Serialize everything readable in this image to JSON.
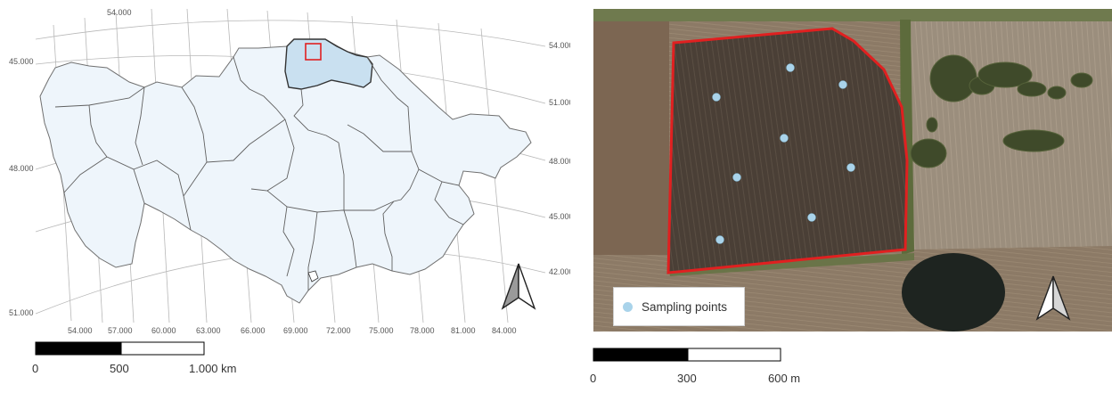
{
  "left_map": {
    "graticule_top_labels": [
      "54.000"
    ],
    "graticule_left_labels": [
      "45.000",
      "48.000",
      "51.000"
    ],
    "graticule_right_labels": [
      "54.000",
      "51.000",
      "48.000",
      "45.000",
      "42.000"
    ],
    "graticule_bottom_labels": [
      "54.000",
      "57.000",
      "60.000",
      "63.000",
      "66.000",
      "69.000",
      "72.000",
      "75.000",
      "78.000",
      "81.000",
      "84.000"
    ],
    "region_fill": "#eef5fb",
    "highlight_fill": "#c9e0f0",
    "study_area_box_color": "#e02020",
    "north_arrow": "north-arrow",
    "scalebar": {
      "labels": [
        "0",
        "500",
        "1.000 km"
      ]
    }
  },
  "right_map": {
    "field_boundary_color": "#e02020",
    "sampling_point_color": "#a9d3ea",
    "sampling_points_count": 8,
    "legend": {
      "label": "Sampling points"
    },
    "north_arrow": "north-arrow",
    "scalebar": {
      "labels": [
        "0",
        "300",
        "600 m"
      ]
    }
  }
}
